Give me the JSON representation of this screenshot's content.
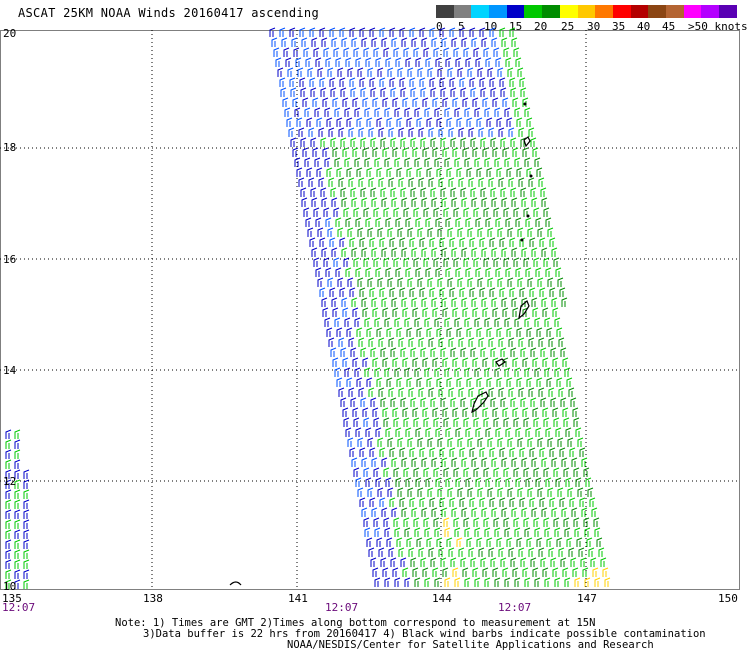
{
  "title": "ASCAT 25KM NOAA Winds 20160417 ascending",
  "legend": {
    "colors": [
      "#404040",
      "#808080",
      "#00d4ff",
      "#0096ff",
      "#0000c8",
      "#00c800",
      "#008c00",
      "#ffff00",
      "#ffc800",
      "#ff7800",
      "#ff0000",
      "#b40000",
      "#8b4513",
      "#b46432",
      "#ff00ff",
      "#b400ff",
      "#5a00b4"
    ],
    "labels": [
      "0",
      "5",
      "10",
      "15",
      "20",
      "25",
      "30",
      "35",
      "40",
      "45",
      ">50 knots"
    ]
  },
  "axes": {
    "lat_labels": [
      "20",
      "18",
      "16",
      "14",
      "12",
      "10"
    ],
    "lon_labels": [
      "135",
      "138",
      "141",
      "144",
      "147",
      "150"
    ],
    "times": [
      "12:07",
      "12:07",
      "12:07"
    ]
  },
  "notes": [
    "Note: 1) Times are GMT 2)Times along bottom correspond to measurement at 15N",
    "3)Data buffer is 22 hrs from 20160417 4) Black wind barbs indicate possible contamination",
    "NOAA/NESDIS/Center for Satellite Applications and Research"
  ],
  "wind_colors": {
    "low": "#0000c8",
    "mid_low": "#0050ff",
    "mid": "#00c800",
    "mid_high": "#008c00",
    "high": "#ffd200"
  }
}
